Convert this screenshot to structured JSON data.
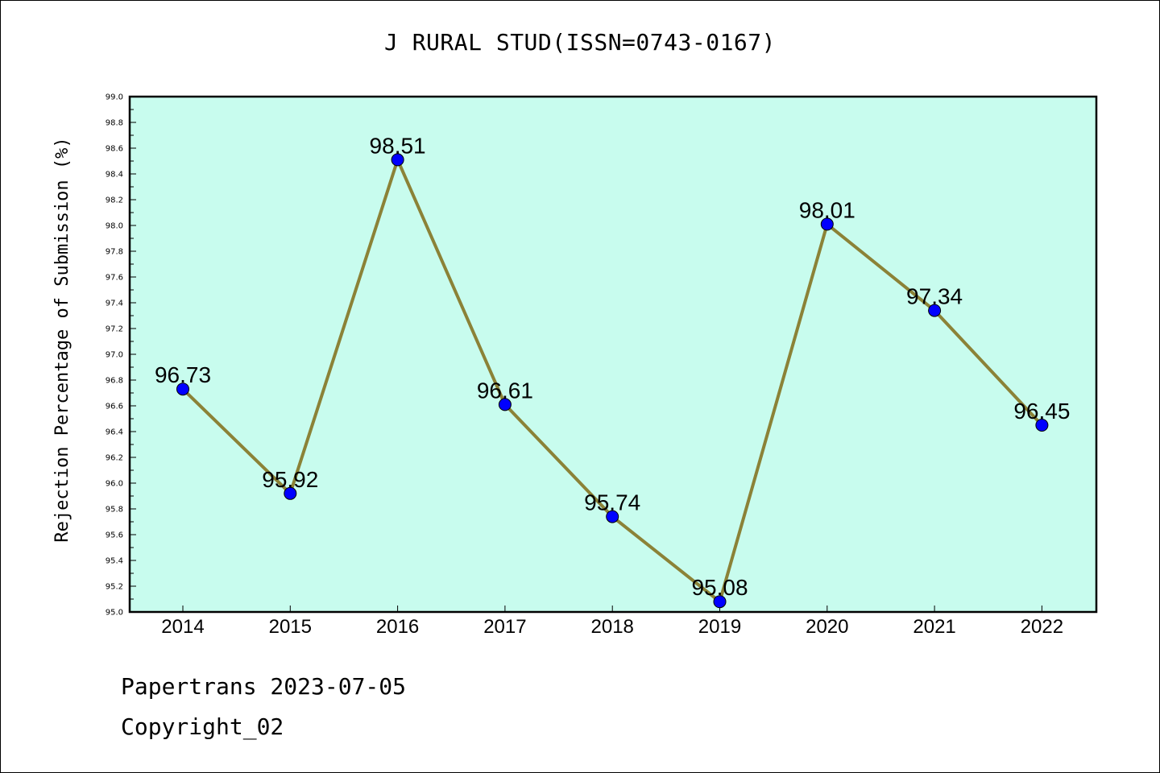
{
  "chart_data": {
    "type": "line",
    "title": "J RURAL STUD(ISSN=0743-0167)",
    "xlabel": "",
    "ylabel": "Rejection Percentage of Submission (%)",
    "categories": [
      "2014",
      "2015",
      "2016",
      "2017",
      "2018",
      "2019",
      "2020",
      "2021",
      "2022"
    ],
    "values": [
      96.73,
      95.92,
      98.51,
      96.61,
      95.74,
      95.08,
      98.01,
      97.34,
      96.45
    ],
    "data_labels": [
      "96.73",
      "95.92",
      "98.51",
      "96.61",
      "95.74",
      "95.08",
      "98.01",
      "97.34",
      "96.45"
    ],
    "ylim": [
      95.0,
      99.0
    ],
    "yticks": [
      "95.0",
      "95.2",
      "95.4",
      "95.6",
      "95.8",
      "96.0",
      "96.2",
      "96.4",
      "96.6",
      "96.8",
      "97.0",
      "97.2",
      "97.4",
      "97.6",
      "97.8",
      "98.0",
      "98.2",
      "98.4",
      "98.6",
      "98.8",
      "99.0"
    ],
    "grid": false,
    "colors": {
      "plot_background": "#c8fcee",
      "line": "#8b8237",
      "marker": "#0000ff"
    }
  },
  "footer": {
    "line1": "Papertrans 2023-07-05",
    "line2": "Copyright_02"
  }
}
